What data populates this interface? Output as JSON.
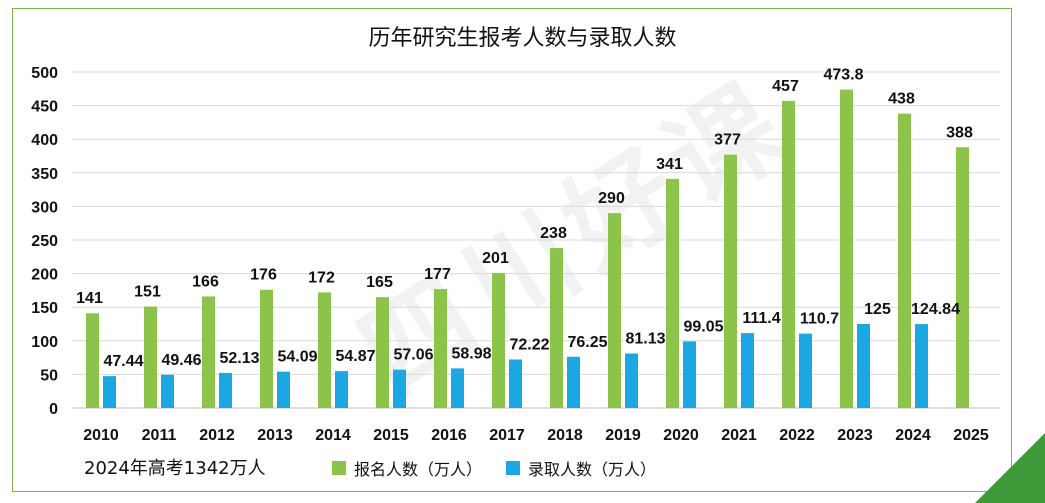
{
  "chart_data": {
    "type": "bar",
    "title": "历年研究生报考人数与录取人数",
    "categories": [
      "2010",
      "2011",
      "2012",
      "2013",
      "2014",
      "2015",
      "2016",
      "2017",
      "2018",
      "2019",
      "2020",
      "2021",
      "2022",
      "2023",
      "2024",
      "2025"
    ],
    "series": [
      {
        "name": "报名人数（万人）",
        "color": "#8cc34b",
        "values": [
          141,
          151,
          166,
          176,
          172,
          165,
          177,
          201,
          238,
          290,
          341,
          377,
          457,
          473.8,
          438,
          388
        ],
        "labels": [
          "141",
          "151",
          "166",
          "176",
          "172",
          "165",
          "177",
          "201",
          "238",
          "290",
          "341",
          "377",
          "457",
          "473.8",
          "438",
          "388"
        ]
      },
      {
        "name": "录取人数（万人）",
        "color": "#1aa7e2",
        "values": [
          47.44,
          49.46,
          52.13,
          54.09,
          54.87,
          57.06,
          58.98,
          72.22,
          76.25,
          81.13,
          99.05,
          111.4,
          110.7,
          125,
          124.84,
          null
        ],
        "labels": [
          "47.44",
          "49.46",
          "52.13",
          "54.09",
          "54.87",
          "57.06",
          "58.98",
          "72.22",
          "76.25",
          "81.13",
          "99.05",
          "111.4",
          "110.7",
          "125",
          "124.84",
          ""
        ]
      }
    ],
    "yticks": [
      "0",
      "50",
      "100",
      "150",
      "200",
      "250",
      "300",
      "350",
      "400",
      "450",
      "500"
    ],
    "ylim": [
      0,
      500
    ],
    "grid": true,
    "legend": "bottom"
  },
  "note": "2024年高考1342万人",
  "watermark": "四川好课",
  "colors": {
    "frame": "#7ab648",
    "corner": "#3f9b3a",
    "grid": "#d9d9d9"
  }
}
